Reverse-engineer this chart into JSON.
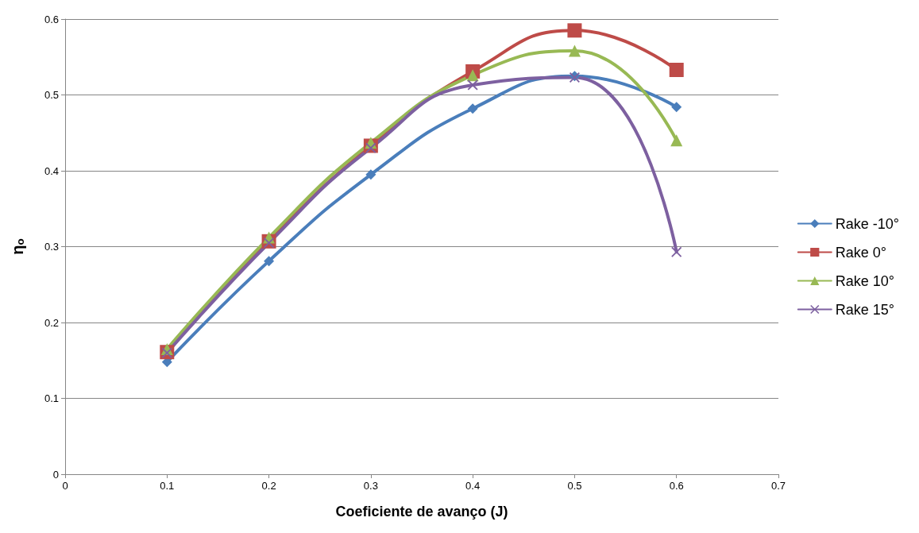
{
  "chart_data": {
    "type": "line",
    "xlabel": "Coeficiente de avanço (J)",
    "ylabel": "ηₒ",
    "x": [
      0.1,
      0.2,
      0.3,
      0.4,
      0.5,
      0.6
    ],
    "series": [
      {
        "name": "Rake -10°",
        "color": "#4a7ebb",
        "marker": "diamond",
        "values": [
          0.148,
          0.281,
          0.395,
          0.482,
          0.525,
          0.484
        ]
      },
      {
        "name": "Rake 0°",
        "color": "#be4b48",
        "marker": "square",
        "values": [
          0.161,
          0.307,
          0.433,
          0.531,
          0.585,
          0.533
        ]
      },
      {
        "name": "Rake 10°",
        "color": "#98b954",
        "marker": "triangle",
        "values": [
          0.165,
          0.312,
          0.437,
          0.526,
          0.558,
          0.44
        ]
      },
      {
        "name": "Rake 15°",
        "color": "#7d60a0",
        "marker": "cross",
        "values": [
          0.16,
          0.305,
          0.43,
          0.513,
          0.523,
          0.293
        ]
      }
    ],
    "xlim": [
      0,
      0.7
    ],
    "xticks": [
      0,
      0.1,
      0.2,
      0.3,
      0.4,
      0.5,
      0.6,
      0.7
    ],
    "ylim": [
      0,
      0.6
    ],
    "yticks": [
      0,
      0.1,
      0.2,
      0.3,
      0.4,
      0.5,
      0.6
    ],
    "grid": "y",
    "legend": "right",
    "line_style": "solid"
  }
}
